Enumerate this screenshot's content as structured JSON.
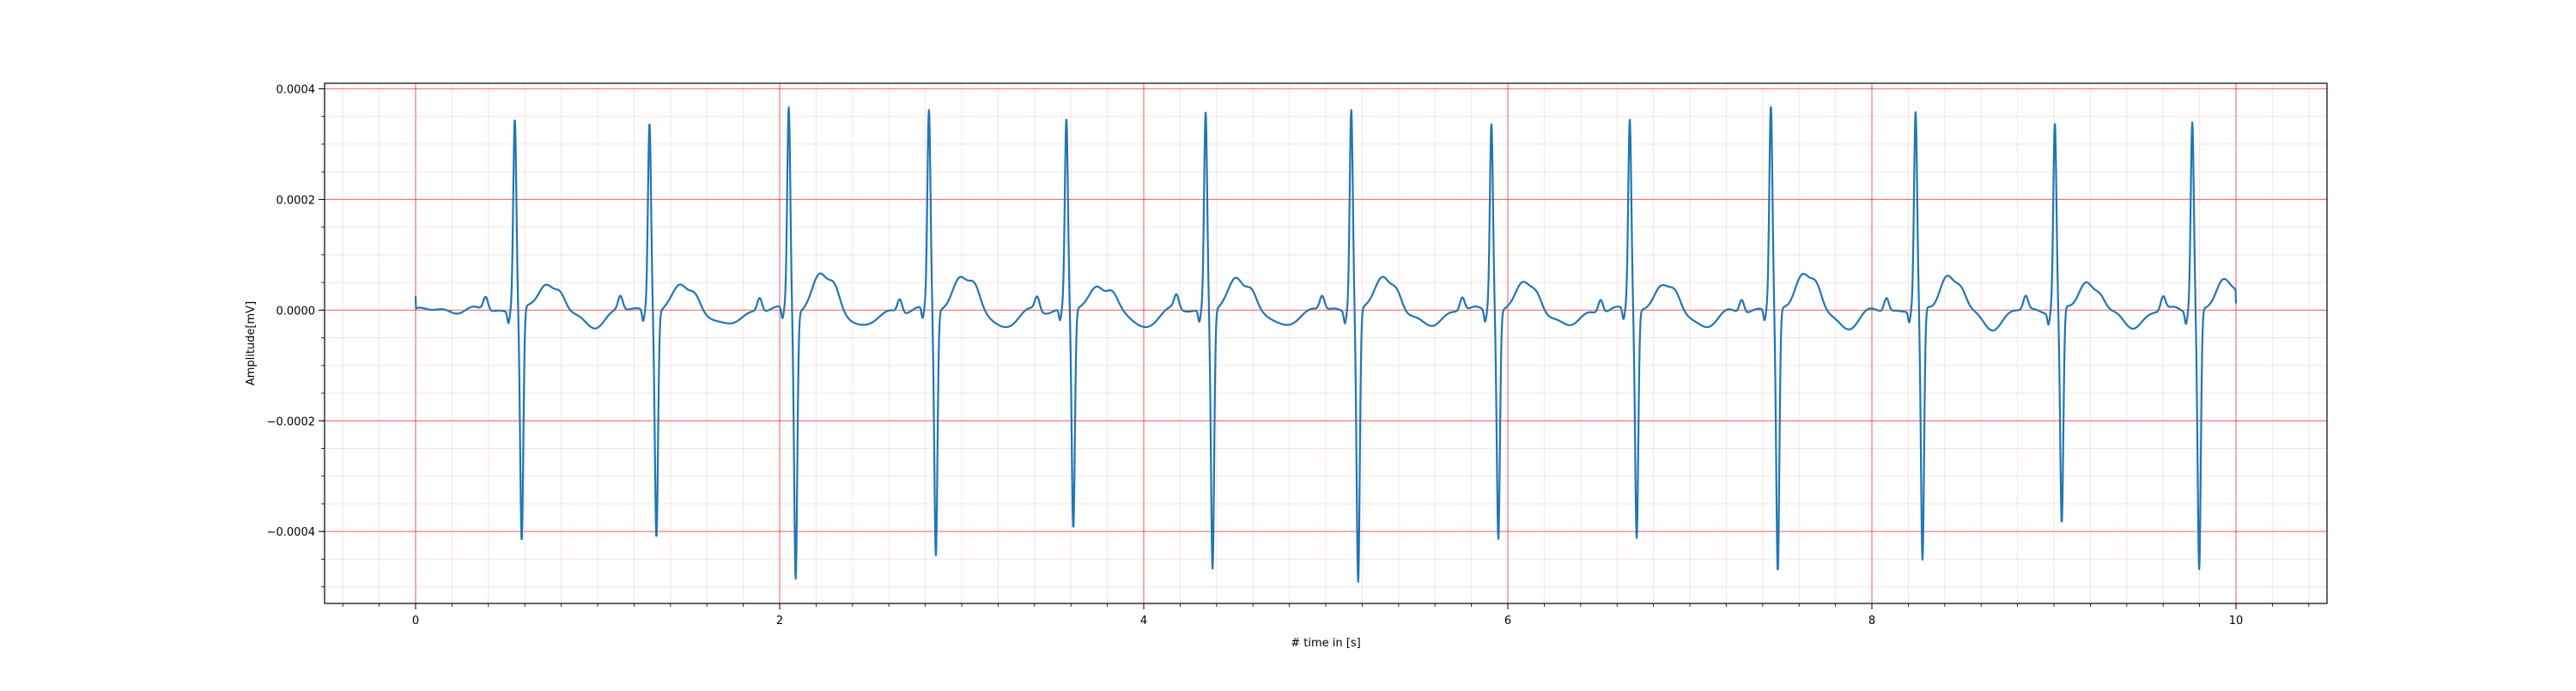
{
  "chart_data": {
    "type": "line",
    "title": "",
    "xlabel": "# time in [s]",
    "ylabel": "Amplitude[mV]",
    "xlim": [
      -0.5,
      10.5
    ],
    "ylim": [
      -0.00053,
      0.00041
    ],
    "x_ticks": [
      0,
      2,
      4,
      6,
      8,
      10
    ],
    "x_tick_labels": [
      "0",
      "2",
      "4",
      "6",
      "8",
      "10"
    ],
    "y_ticks": [
      0.0004,
      0.0002,
      0.0,
      -0.0002,
      -0.0004
    ],
    "y_tick_labels": [
      "0.0004",
      "0.0002",
      "0.0000",
      "−0.0002",
      "−0.0004"
    ],
    "grid": {
      "major": true,
      "minor": true,
      "color": "#ff0000"
    },
    "series": [
      {
        "color": "#1f77b4",
        "beats": [
          {
            "t": 0.545,
            "r": 0.000348,
            "s": -0.00042,
            "t_wave": 5e-05
          },
          {
            "t": 1.285,
            "r": 0.000343,
            "s": -0.000405,
            "t_wave": 4.5e-05
          },
          {
            "t": 2.05,
            "r": 0.000368,
            "s": -0.00048,
            "t_wave": 6.5e-05
          },
          {
            "t": 2.82,
            "r": 0.00036,
            "s": -0.000442,
            "t_wave": 6.3e-05
          },
          {
            "t": 3.575,
            "r": 0.000345,
            "s": -0.000395,
            "t_wave": 4.8e-05
          },
          {
            "t": 4.34,
            "r": 0.00036,
            "s": -0.000465,
            "t_wave": 6e-05
          },
          {
            "t": 5.14,
            "r": 0.000368,
            "s": -0.00049,
            "t_wave": 6e-05
          },
          {
            "t": 5.91,
            "r": 0.000342,
            "s": -0.00041,
            "t_wave": 4.8e-05
          },
          {
            "t": 6.67,
            "r": 0.000345,
            "s": -0.00041,
            "t_wave": 4.5e-05
          },
          {
            "t": 7.445,
            "r": 0.000368,
            "s": -0.000475,
            "t_wave": 6.8e-05
          },
          {
            "t": 8.24,
            "r": 0.000355,
            "s": -0.000458,
            "t_wave": 6.3e-05
          },
          {
            "t": 9.005,
            "r": 0.00034,
            "s": -0.00039,
            "t_wave": 5e-05
          },
          {
            "t": 9.76,
            "r": 0.000345,
            "s": -0.000468,
            "t_wave": 5.2e-05
          }
        ],
        "x_start": 0.0,
        "x_end": 10.0,
        "y_start": 2.5e-05,
        "y_end": 1.2e-05
      }
    ]
  }
}
